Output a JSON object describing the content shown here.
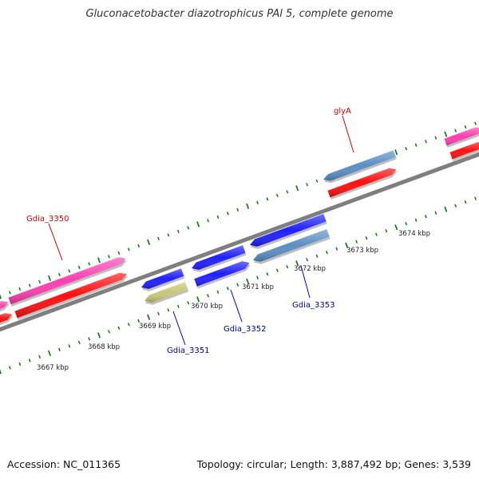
{
  "title": "Gluconacetobacter diazotrophicus PAl 5, complete genome",
  "footer": {
    "accession": "Accession: NC_011365",
    "summary": "Topology: circular; Length: 3,887,492 bp; Genes: 3,539"
  },
  "colors": {
    "backbone": "#7f7f7f",
    "ticks": "#1e7d1e",
    "tick_label": "#222222",
    "label_red": "#cc0000",
    "label_blue": "#00008b",
    "leader": "#cc0000",
    "leader_blue": "#0000cc"
  },
  "ticks": [
    {
      "label": "3667 kbp"
    },
    {
      "label": "3668 kbp"
    },
    {
      "label": "3669 kbp"
    },
    {
      "label": "3670 kbp"
    },
    {
      "label": "3671 kbp"
    },
    {
      "label": "3672 kbp"
    },
    {
      "label": "3673 kbp"
    },
    {
      "label": "3674 kbp"
    }
  ],
  "features": [
    {
      "id": "pink-left-edge",
      "color": "#ff3fb0",
      "strand": "forward"
    },
    {
      "id": "red-left-edge",
      "color": "#ff1010",
      "strand": "forward"
    },
    {
      "id": "gdia-3350-pink",
      "color": "#ff3fb0",
      "strand": "forward"
    },
    {
      "id": "gdia-3350-red",
      "color": "#ff1010",
      "strand": "forward"
    },
    {
      "id": "gdia-3351-blue",
      "color": "#2020ff",
      "strand": "reverse"
    },
    {
      "id": "gdia-3351-olive",
      "color": "#c8c878",
      "strand": "reverse"
    },
    {
      "id": "gdia-3352-blue-a",
      "color": "#2020ff",
      "strand": "reverse"
    },
    {
      "id": "gdia-3352-blue-b",
      "color": "#2020ff",
      "strand": "forward"
    },
    {
      "id": "gdia-3353-blue",
      "color": "#2020ff",
      "strand": "reverse"
    },
    {
      "id": "gdia-3353-steel",
      "color": "#5b8fc4",
      "strand": "reverse"
    },
    {
      "id": "glya-steel",
      "color": "#5b8fc4",
      "strand": "reverse"
    },
    {
      "id": "glya-red",
      "color": "#ff1010",
      "strand": "forward"
    },
    {
      "id": "right-pink",
      "color": "#ff3fb0",
      "strand": "forward"
    },
    {
      "id": "right-red",
      "color": "#ff1010",
      "strand": "forward"
    }
  ],
  "gene_labels": [
    {
      "text": "Gdia_3350",
      "color": "#cc0000"
    },
    {
      "text": "Gdia_3351",
      "color": "#00008b"
    },
    {
      "text": "Gdia_3352",
      "color": "#00008b"
    },
    {
      "text": "Gdia_3353",
      "color": "#00008b"
    },
    {
      "text": "glyA",
      "color": "#cc0000"
    }
  ]
}
